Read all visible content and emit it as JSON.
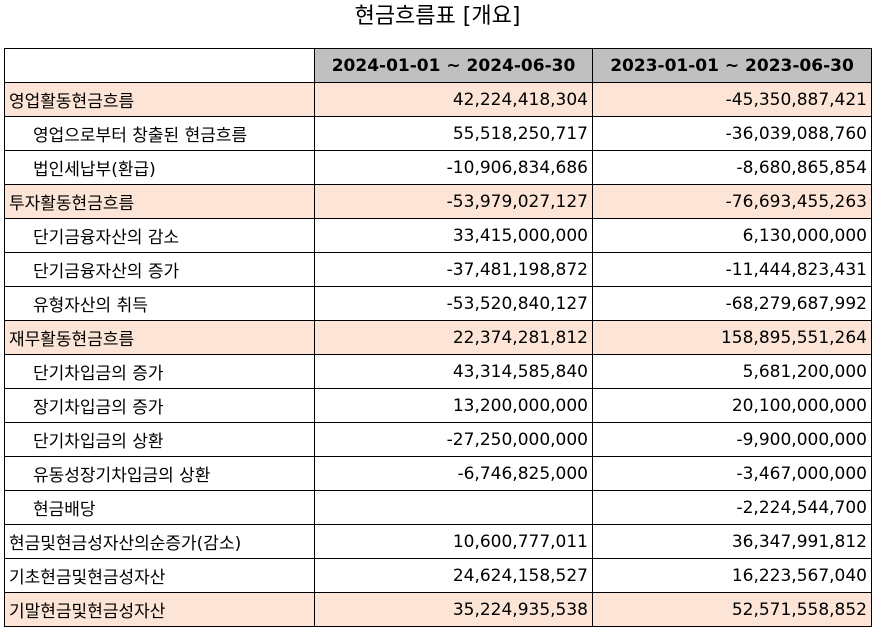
{
  "title": "현금흐름표 [개요]",
  "table": {
    "header": [
      "",
      "2024-01-01 ~ 2024-06-30",
      "2023-01-01 ~ 2023-06-30"
    ],
    "rows": [
      {
        "label": "영업활동현금흐름",
        "v1": "42,224,418,304",
        "v2": "-45,350,887,421"
      },
      {
        "label": "영업으로부터 창출된 현금흐름",
        "v1": "55,518,250,717",
        "v2": "-36,039,088,760"
      },
      {
        "label": "법인세납부(환급)",
        "v1": "-10,906,834,686",
        "v2": "-8,680,865,854"
      },
      {
        "label": "투자활동현금흐름",
        "v1": "-53,979,027,127",
        "v2": "-76,693,455,263"
      },
      {
        "label": "단기금융자산의 감소",
        "v1": "33,415,000,000",
        "v2": "6,130,000,000"
      },
      {
        "label": "단기금융자산의 증가",
        "v1": "-37,481,198,872",
        "v2": "-11,444,823,431"
      },
      {
        "label": "유형자산의 취득",
        "v1": "-53,520,840,127",
        "v2": "-68,279,687,992"
      },
      {
        "label": "재무활동현금흐름",
        "v1": "22,374,281,812",
        "v2": "158,895,551,264"
      },
      {
        "label": "단기차입금의 증가",
        "v1": "43,314,585,840",
        "v2": "5,681,200,000"
      },
      {
        "label": "장기차입금의 증가",
        "v1": "13,200,000,000",
        "v2": "20,100,000,000"
      },
      {
        "label": "단기차입금의 상환",
        "v1": "-27,250,000,000",
        "v2": "-9,900,000,000"
      },
      {
        "label": "유동성장기차입금의 상환",
        "v1": "-6,746,825,000",
        "v2": "-3,467,000,000"
      },
      {
        "label": "현금배당",
        "v1": "",
        "v2": "-2,224,544,700"
      },
      {
        "label": "현금및현금성자산의순증가(감소)",
        "v1": "10,600,777,011",
        "v2": "36,347,991,812"
      },
      {
        "label": "기초현금및현금성자산",
        "v1": "24,624,158,527",
        "v2": "16,223,567,040"
      },
      {
        "label": "기말현금및현금성자산",
        "v1": "35,224,935,538",
        "v2": "52,571,558,852"
      }
    ]
  },
  "colors": {
    "header_bg": "#c0c0c0",
    "highlight_bg": "#fce4d6",
    "border": "#000000"
  }
}
